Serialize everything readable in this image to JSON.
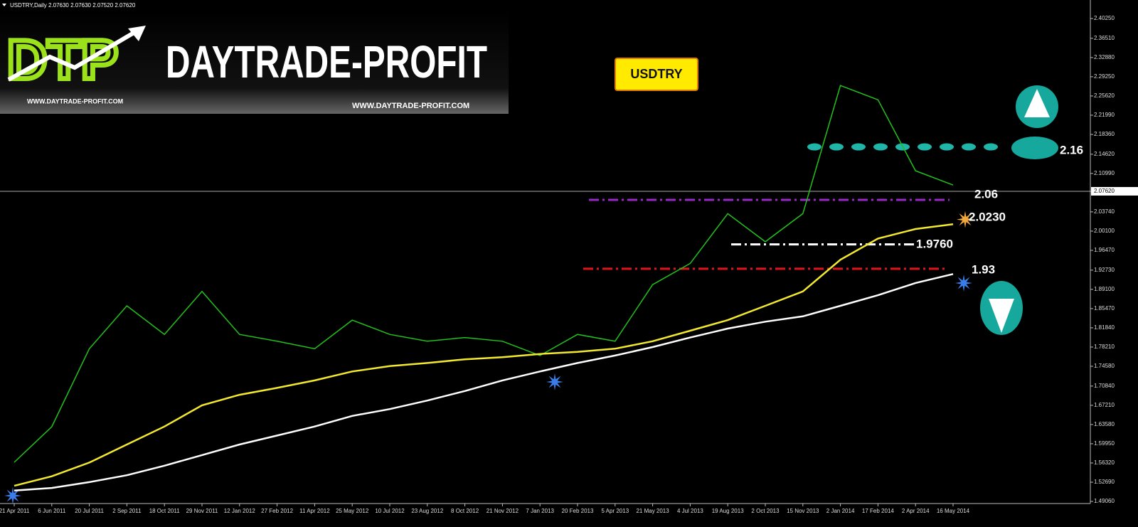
{
  "chart_data": {
    "type": "line",
    "title": "USDTRY,Daily  2.07630 2.07630 2.07520 2.07620",
    "symbol_badge": "USDTRY",
    "logo": {
      "mark": "DTP",
      "name": "DAYTRADE-PROFIT",
      "url_left": "WWW.DAYTRADE-PROFIT.COM",
      "url_right": "WWW.DAYTRADE-PROFIT.COM"
    },
    "categories": [
      "21 Apr 2011",
      "6 Jun 2011",
      "20 Jul 2011",
      "2 Sep 2011",
      "18 Oct 2011",
      "29 Nov 2011",
      "12 Jan 2012",
      "27 Feb 2012",
      "11 Apr 2012",
      "25 May 2012",
      "10 Jul 2012",
      "23 Aug 2012",
      "8 Oct 2012",
      "21 Nov 2012",
      "7 Jan 2013",
      "20 Feb 2013",
      "5 Apr 2013",
      "21 May 2013",
      "4 Jul 2013",
      "19 Aug 2013",
      "2 Oct 2013",
      "15 Nov 2013",
      "2 Jan 2014",
      "17 Feb 2014",
      "2 Apr 2014",
      "16 May 2014"
    ],
    "series": [
      {
        "color": "#22c21c",
        "values": [
          1.5645,
          1.6316,
          1.779,
          1.86,
          1.806,
          1.887,
          1.806,
          1.793,
          1.779,
          1.833,
          1.806,
          1.793,
          1.8,
          1.793,
          1.766,
          1.806,
          1.793,
          1.9,
          1.94,
          2.034,
          1.981,
          2.034,
          2.276,
          2.249,
          2.115,
          2.088
        ]
      },
      {
        "color": "#f2e82e",
        "values": [
          1.52,
          1.538,
          1.564,
          1.598,
          1.632,
          1.672,
          1.692,
          1.705,
          1.719,
          1.736,
          1.746,
          1.752,
          1.759,
          1.763,
          1.769,
          1.773,
          1.779,
          1.793,
          1.813,
          1.833,
          1.86,
          1.887,
          1.947,
          1.987,
          2.005,
          2.014
        ]
      },
      {
        "color": "#ffffff",
        "values": [
          1.511,
          1.516,
          1.527,
          1.54,
          1.558,
          1.578,
          1.598,
          1.615,
          1.632,
          1.652,
          1.665,
          1.681,
          1.699,
          1.719,
          1.736,
          1.752,
          1.766,
          1.782,
          1.8,
          1.817,
          1.83,
          1.84,
          1.86,
          1.88,
          1.903,
          1.92
        ]
      }
    ],
    "levels": [
      {
        "value": 2.16,
        "style": "dots",
        "color": "#1fb5a8"
      },
      {
        "value": 2.06,
        "style": "dashdot",
        "color": "#9b27c9"
      },
      {
        "value": 2.023,
        "label": "2.0230",
        "style": "star",
        "color": "#f2a83a"
      },
      {
        "value": 1.976,
        "label": "1.9760",
        "style": "dashdot",
        "color": "#ffffff"
      },
      {
        "value": 1.93,
        "style": "dashdot",
        "color": "#e0141c"
      }
    ],
    "ylim": [
      1.4866,
      2.4374
    ],
    "yticks": [
      {
        "value": 2.4025,
        "label": "2.40250"
      },
      {
        "value": 2.3651,
        "label": "2.36510"
      },
      {
        "value": 2.3288,
        "label": "2.32880"
      },
      {
        "value": 2.2925,
        "label": "2.29250"
      },
      {
        "value": 2.2562,
        "label": "2.25620"
      },
      {
        "value": 2.2199,
        "label": "2.21990"
      },
      {
        "value": 2.1836,
        "label": "2.18360"
      },
      {
        "value": 2.1462,
        "label": "2.14620"
      },
      {
        "value": 2.1099,
        "label": "2.10990"
      },
      {
        "value": 2.0762,
        "label": "2.07620"
      },
      {
        "value": 2.0374,
        "label": "2.03740"
      },
      {
        "value": 2.001,
        "label": "2.00100"
      },
      {
        "value": 1.9647,
        "label": "1.96470"
      },
      {
        "value": 1.9273,
        "label": "1.92730"
      },
      {
        "value": 1.891,
        "label": "1.89100"
      },
      {
        "value": 1.8547,
        "label": "1.85470"
      },
      {
        "value": 1.8184,
        "label": "1.81840"
      },
      {
        "value": 1.7821,
        "label": "1.78210"
      },
      {
        "value": 1.7458,
        "label": "1.74580"
      },
      {
        "value": 1.7084,
        "label": "1.70840"
      },
      {
        "value": 1.6721,
        "label": "1.67210"
      },
      {
        "value": 1.6358,
        "label": "1.63580"
      },
      {
        "value": 1.5995,
        "label": "1.59950"
      },
      {
        "value": 1.5632,
        "label": "1.56320"
      },
      {
        "value": 1.5269,
        "label": "1.52690"
      },
      {
        "value": 1.4906,
        "label": "1.49060"
      }
    ],
    "current_tick": 9,
    "grid": false
  }
}
